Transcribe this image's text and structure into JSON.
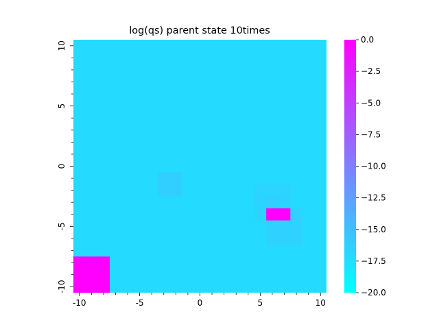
{
  "chart_data": {
    "type": "heatmap",
    "title": "log(qs) parent state  10times",
    "xlabel": "",
    "ylabel": "",
    "grid_size": 21,
    "xlim": [
      -10,
      10
    ],
    "ylim": [
      -10,
      10
    ],
    "x_ticks": [
      -10,
      -5,
      0,
      5,
      10
    ],
    "y_ticks": [
      10,
      5,
      0,
      -5,
      -10
    ],
    "x_tick_labels": [
      "-10",
      "-5",
      "0",
      "5",
      "10"
    ],
    "y_tick_labels": [
      "10",
      "5",
      "0",
      "-5",
      "-10"
    ],
    "background_value": -17.2,
    "cells": [
      {
        "x": -10,
        "y": -8,
        "value": 0.0
      },
      {
        "x": -10,
        "y": -9,
        "value": 0.0
      },
      {
        "x": -10,
        "y": -10,
        "value": 0.0
      },
      {
        "x": -9,
        "y": -8,
        "value": 0.0
      },
      {
        "x": -9,
        "y": -9,
        "value": 0.0
      },
      {
        "x": -9,
        "y": -10,
        "value": 0.0
      },
      {
        "x": -8,
        "y": -8,
        "value": 0.0
      },
      {
        "x": -8,
        "y": -9,
        "value": 0.0
      },
      {
        "x": -8,
        "y": -10,
        "value": 0.0
      },
      {
        "x": -3,
        "y": -1,
        "value": -16.2
      },
      {
        "x": -3,
        "y": -2,
        "value": -16.2
      },
      {
        "x": -2,
        "y": -1,
        "value": -16.2
      },
      {
        "x": -2,
        "y": -2,
        "value": -16.2
      },
      {
        "x": 5,
        "y": -2,
        "value": -16.6
      },
      {
        "x": 6,
        "y": -2,
        "value": -16.6
      },
      {
        "x": 7,
        "y": -2,
        "value": -16.6
      },
      {
        "x": 5,
        "y": -3,
        "value": -16.6
      },
      {
        "x": 6,
        "y": -3,
        "value": -16.2
      },
      {
        "x": 7,
        "y": -3,
        "value": -16.6
      },
      {
        "x": 5,
        "y": -4,
        "value": -16.6
      },
      {
        "x": 6,
        "y": -4,
        "value": 0.0
      },
      {
        "x": 7,
        "y": -4,
        "value": 0.0
      },
      {
        "x": 8,
        "y": -4,
        "value": -16.4
      },
      {
        "x": 6,
        "y": -5,
        "value": -16.4
      },
      {
        "x": 7,
        "y": -5,
        "value": -16.4
      },
      {
        "x": 8,
        "y": -5,
        "value": -16.4
      },
      {
        "x": 6,
        "y": -6,
        "value": -16.4
      },
      {
        "x": 7,
        "y": -6,
        "value": -16.4
      },
      {
        "x": 8,
        "y": -6,
        "value": -16.4
      }
    ],
    "colorbar": {
      "min": -20.0,
      "max": 0.0,
      "ticks": [
        0.0,
        -2.5,
        -5.0,
        -7.5,
        -10.0,
        -12.5,
        -15.0,
        -17.5,
        -20.0
      ],
      "tick_labels": [
        "0.0",
        "−2.5",
        "−5.0",
        "−7.5",
        "−10.0",
        "−12.5",
        "−15.0",
        "−17.5",
        "−20.0"
      ],
      "colormap": "cool",
      "color_low": "#00ffff",
      "color_high": "#ff00ff"
    }
  }
}
